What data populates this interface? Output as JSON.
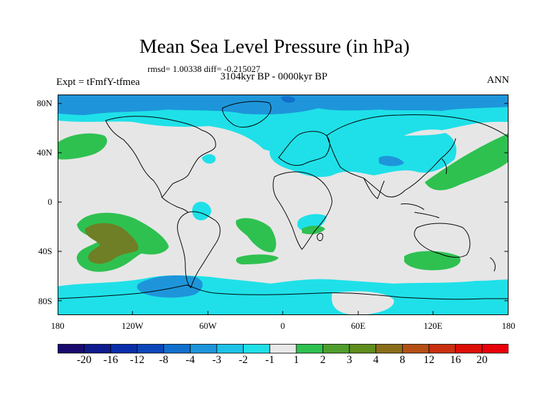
{
  "title": "Mean Sea Level Pressure (in hPa)",
  "stats": "rmsd= 1.00338 diff= -0.215027",
  "period": "3104kyr BP - 0000kyr BP",
  "experiment": "Expt = tFmfY-tfmea",
  "season": "ANN",
  "lat_labels": [
    "80N",
    "40N",
    "0",
    "40S",
    "80S"
  ],
  "lon_labels": [
    "180",
    "120W",
    "60W",
    "0",
    "60E",
    "120E",
    "180"
  ],
  "colorbar": {
    "labels": [
      "-20",
      "-16",
      "-12",
      "-8",
      "-4",
      "-3",
      "-2",
      "-1",
      "1",
      "2",
      "3",
      "4",
      "8",
      "12",
      "16",
      "20"
    ],
    "colors": [
      "#1a0a6e",
      "#0f1a8c",
      "#0a2eaa",
      "#0b47b8",
      "#1170cc",
      "#1e95da",
      "#1dc2e6",
      "#1fe0e8",
      "#e8e8e8",
      "#2ec150",
      "#4f9e2c",
      "#5f8d1e",
      "#8a6d1a",
      "#b45015",
      "#c9300f",
      "#dc0f06",
      "#e8000a"
    ]
  },
  "map_colors": {
    "ocean_neutral": "#e6e6e6",
    "neg_1_2": "#1fe0e8",
    "neg_2_3": "#1dc2e6",
    "neg_3_4": "#1e95da",
    "pos_1_2": "#2ec150",
    "pos_3_4": "#6f7f25"
  }
}
